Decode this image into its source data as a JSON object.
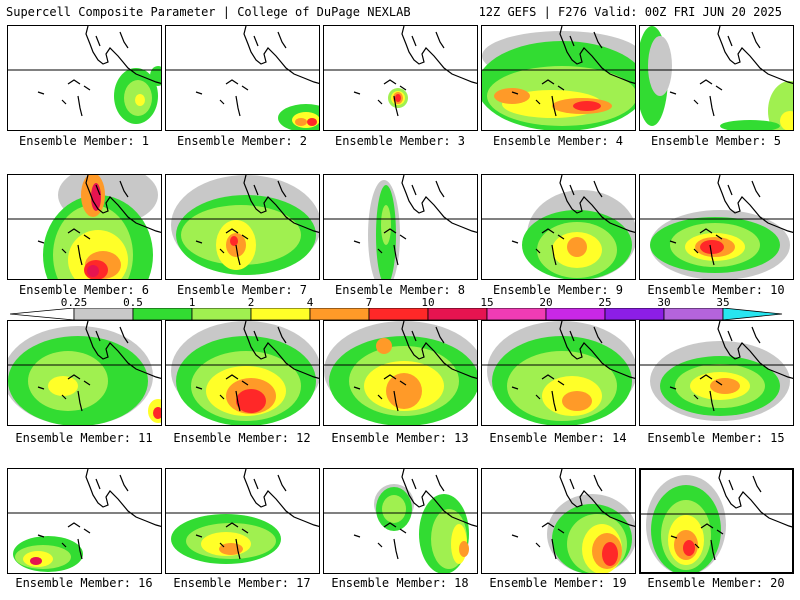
{
  "header": {
    "left": "Supercell Composite Parameter | College of DuPage NEXLAB",
    "right": "12Z GEFS | F276 Valid: 00Z FRI JUN 20 2025"
  },
  "colorbar": {
    "labels": [
      "0.25",
      "0.5",
      "1",
      "2",
      "4",
      "7",
      "10",
      "15",
      "20",
      "25",
      "30",
      "35"
    ],
    "colors": [
      "#c8c8c8",
      "#32dc32",
      "#a0f050",
      "#ffff28",
      "#ff9a28",
      "#ff2828",
      "#e61450",
      "#f03cb4",
      "#c828e6",
      "#8c1ee6",
      "#b464dc",
      "#28e6f0"
    ]
  },
  "panels": [
    {
      "caption": "Ensemble Member: 1"
    },
    {
      "caption": "Ensemble Member: 2"
    },
    {
      "caption": "Ensemble Member: 3"
    },
    {
      "caption": "Ensemble Member: 4"
    },
    {
      "caption": "Ensemble Member: 5"
    },
    {
      "caption": "Ensemble Member: 6"
    },
    {
      "caption": "Ensemble Member: 7"
    },
    {
      "caption": "Ensemble Member: 8"
    },
    {
      "caption": "Ensemble Member: 9"
    },
    {
      "caption": "Ensemble Member: 10"
    },
    {
      "caption": "Ensemble Member: 11"
    },
    {
      "caption": "Ensemble Member: 12"
    },
    {
      "caption": "Ensemble Member: 13"
    },
    {
      "caption": "Ensemble Member: 14"
    },
    {
      "caption": "Ensemble Member: 15"
    },
    {
      "caption": "Ensemble Member: 16"
    },
    {
      "caption": "Ensemble Member: 17"
    },
    {
      "caption": "Ensemble Member: 18"
    },
    {
      "caption": "Ensemble Member: 19"
    },
    {
      "caption": "Ensemble Member: 20"
    }
  ]
}
